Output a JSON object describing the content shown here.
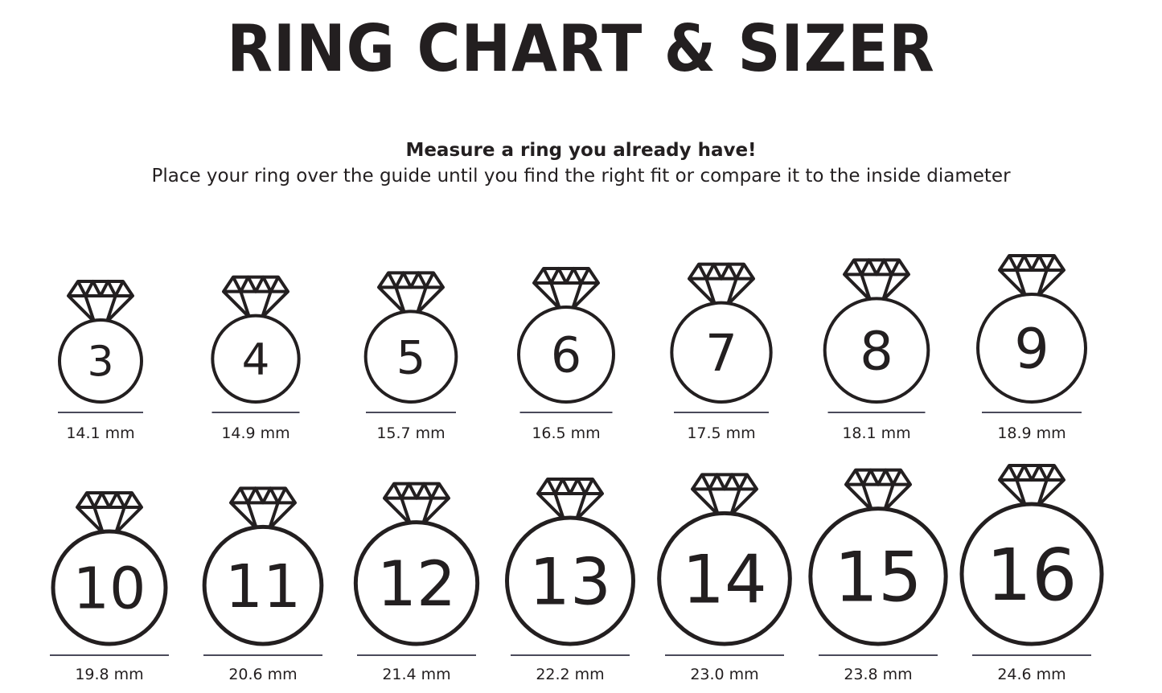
{
  "title": "RING CHART & SIZER",
  "subtitle": "Measure a ring you already have!",
  "instructions": "Place your ring over the guide until you find the right fit or compare it to the inside diameter",
  "colors": {
    "ink": "#231f20",
    "line": "#4a4a5a"
  },
  "icon": "diamond-ring-icon",
  "rings": [
    {
      "size": "3",
      "diameter": "14.1 mm"
    },
    {
      "size": "4",
      "diameter": "14.9 mm"
    },
    {
      "size": "5",
      "diameter": "15.7 mm"
    },
    {
      "size": "6",
      "diameter": "16.5 mm"
    },
    {
      "size": "7",
      "diameter": "17.5 mm"
    },
    {
      "size": "8",
      "diameter": "18.1 mm"
    },
    {
      "size": "9",
      "diameter": "18.9 mm"
    },
    {
      "size": "10",
      "diameter": "19.8 mm"
    },
    {
      "size": "11",
      "diameter": "20.6 mm"
    },
    {
      "size": "12",
      "diameter": "21.4 mm"
    },
    {
      "size": "13",
      "diameter": "22.2 mm"
    },
    {
      "size": "14",
      "diameter": "23.0 mm"
    },
    {
      "size": "15",
      "diameter": "23.8 mm"
    },
    {
      "size": "16",
      "diameter": "24.6 mm"
    }
  ]
}
